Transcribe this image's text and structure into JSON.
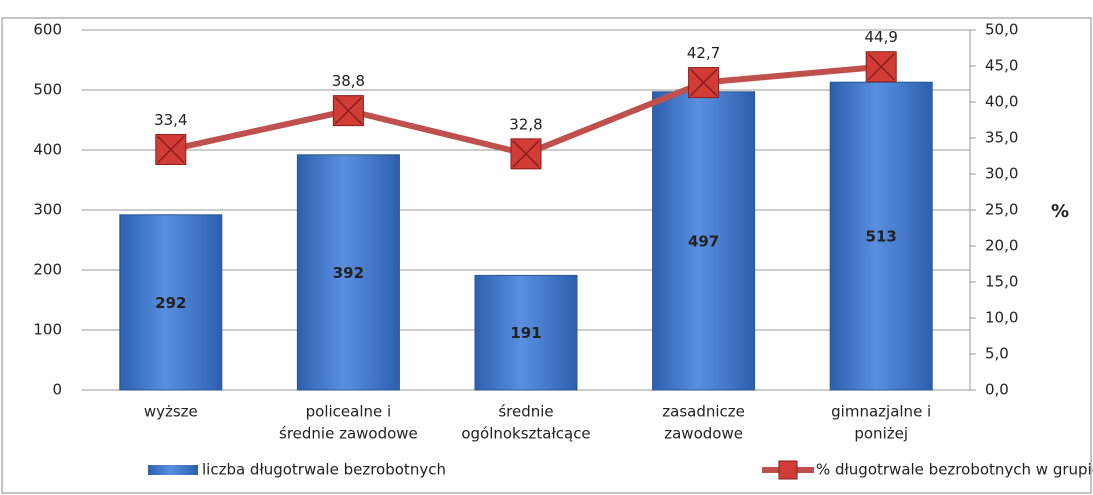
{
  "chart_data": {
    "type": "bar",
    "categories": [
      [
        "wyższe"
      ],
      [
        "policealne i",
        "średnie zawodowe"
      ],
      [
        "średnie",
        "ogólnokształcące"
      ],
      [
        "zasadnicze",
        "zawodowe"
      ],
      [
        "gimnazjalne i",
        "poniżej"
      ]
    ],
    "series": [
      {
        "name": "liczba długotrwale bezrobotnych",
        "type": "bar",
        "color": "#3f74c9",
        "values": [
          292,
          392,
          191,
          497,
          513
        ]
      },
      {
        "name": "% długotrwale bezrobotnych w grupie",
        "type": "line",
        "axis": "y2",
        "color": "#c0504d",
        "values": [
          33.4,
          38.8,
          32.8,
          42.7,
          44.9
        ],
        "value_labels": [
          "33,4",
          "38,8",
          "32,8",
          "42,7",
          "44,9"
        ]
      }
    ],
    "ylim": [
      0,
      600
    ],
    "yticks": [
      0,
      100,
      200,
      300,
      400,
      500,
      600
    ],
    "y2lim": [
      0,
      50
    ],
    "y2ticks": [
      {
        "value": 0,
        "label": "0,0"
      },
      {
        "value": 5,
        "label": "5,0"
      },
      {
        "value": 10,
        "label": "10,0"
      },
      {
        "value": 15,
        "label": "15,0"
      },
      {
        "value": 20,
        "label": "20,0"
      },
      {
        "value": 25,
        "label": "25,0"
      },
      {
        "value": 30,
        "label": "30,0"
      },
      {
        "value": 35,
        "label": "35,0"
      },
      {
        "value": 40,
        "label": "40,0"
      },
      {
        "value": 45,
        "label": "45,0"
      },
      {
        "value": 50,
        "label": "50,0"
      }
    ],
    "y2label": "%",
    "grid": true,
    "legend": "bottom"
  }
}
